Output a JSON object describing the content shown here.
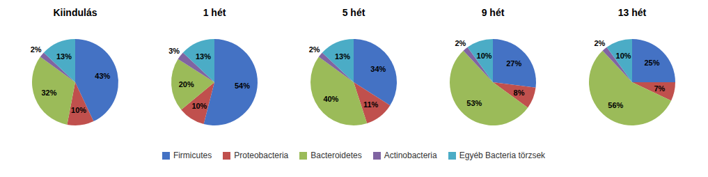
{
  "chart_data": [
    {
      "type": "pie",
      "title": "Kiindulás",
      "categories": [
        "Firmicutes",
        "Proteobacteria",
        "Bacteroidetes",
        "Actinobacteria",
        "Egyéb Bacteria törzsek"
      ],
      "values": [
        43,
        10,
        32,
        2,
        13
      ],
      "value_labels": [
        "43%",
        "10%",
        "32%",
        "2%",
        "13%"
      ],
      "colors": [
        "#4472C4",
        "#C0504D",
        "#9BBB59",
        "#8064A2",
        "#4BACC6"
      ],
      "data_labels": true,
      "legend": "bottom"
    },
    {
      "type": "pie",
      "title": "1 hét",
      "categories": [
        "Firmicutes",
        "Proteobacteria",
        "Bacteroidetes",
        "Actinobacteria",
        "Egyéb Bacteria törzsek"
      ],
      "values": [
        54,
        10,
        20,
        3,
        13
      ],
      "value_labels": [
        "54%",
        "10%",
        "20%",
        "3%",
        "13%"
      ],
      "colors": [
        "#4472C4",
        "#C0504D",
        "#9BBB59",
        "#8064A2",
        "#4BACC6"
      ],
      "data_labels": true,
      "legend": "bottom"
    },
    {
      "type": "pie",
      "title": "5 hét",
      "categories": [
        "Firmicutes",
        "Proteobacteria",
        "Bacteroidetes",
        "Actinobacteria",
        "Egyéb Bacteria törzsek"
      ],
      "values": [
        34,
        11,
        40,
        2,
        13
      ],
      "value_labels": [
        "34%",
        "11%",
        "40%",
        "2%",
        "13%"
      ],
      "colors": [
        "#4472C4",
        "#C0504D",
        "#9BBB59",
        "#8064A2",
        "#4BACC6"
      ],
      "data_labels": true,
      "legend": "bottom"
    },
    {
      "type": "pie",
      "title": "9 hét",
      "categories": [
        "Firmicutes",
        "Proteobacteria",
        "Bacteroidetes",
        "Actinobacteria",
        "Egyéb Bacteria törzsek"
      ],
      "values": [
        27,
        8,
        53,
        2,
        10
      ],
      "value_labels": [
        "27%",
        "8%",
        "53%",
        "2%",
        "10%"
      ],
      "colors": [
        "#4472C4",
        "#C0504D",
        "#9BBB59",
        "#8064A2",
        "#4BACC6"
      ],
      "data_labels": true,
      "legend": "bottom"
    },
    {
      "type": "pie",
      "title": "13 hét",
      "categories": [
        "Firmicutes",
        "Proteobacteria",
        "Bacteroidetes",
        "Actinobacteria",
        "Egyéb Bacteria törzsek"
      ],
      "values": [
        25,
        7,
        56,
        2,
        10
      ],
      "value_labels": [
        "25%",
        "7%",
        "56%",
        "2%",
        "10%"
      ],
      "colors": [
        "#4472C4",
        "#C0504D",
        "#9BBB59",
        "#8064A2",
        "#4BACC6"
      ],
      "data_labels": true,
      "legend": "bottom"
    }
  ]
}
